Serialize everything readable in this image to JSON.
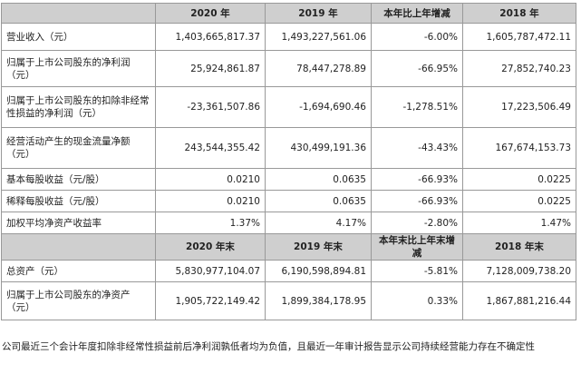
{
  "header1": [
    "",
    "2020 年",
    "2019 年",
    "本年比上年增减",
    "2018 年"
  ],
  "rows1": [
    {
      "label": "营业收入（元）",
      "v2020": "1,403,665,817.37",
      "v2019": "1,493,227,561.06",
      "change": "-6.00%",
      "v2018": "1,605,787,472.11"
    },
    {
      "label": "归属于上市公司股东的净利润（元）",
      "v2020": "25,924,861.87",
      "v2019": "78,447,278.89",
      "change": "-66.95%",
      "v2018": "27,852,740.23"
    },
    {
      "label": "归属于上市公司股东的扣除非经常性损益的净利润（元）",
      "v2020": "-23,361,507.86",
      "v2019": "-1,694,690.46",
      "change": "-1,278.51%",
      "v2018": "17,223,506.49"
    },
    {
      "label": "经营活动产生的现金流量净额（元）",
      "v2020": "243,544,355.42",
      "v2019": "430,499,191.36",
      "change": "-43.43%",
      "v2018": "167,674,153.73"
    },
    {
      "label": "基本每股收益（元/股）",
      "v2020": "0.0210",
      "v2019": "0.0635",
      "change": "-66.93%",
      "v2018": "0.0225"
    },
    {
      "label": "稀释每股收益（元/股）",
      "v2020": "0.0210",
      "v2019": "0.0635",
      "change": "-66.93%",
      "v2018": "0.0225"
    },
    {
      "label": "加权平均净资产收益率",
      "v2020": "1.37%",
      "v2019": "4.17%",
      "change": "-2.80%",
      "v2018": "1.47%"
    }
  ],
  "header2": [
    "",
    "2020 年末",
    "2019 年末",
    "本年末比上年末增减",
    "2018 年末"
  ],
  "rows2": [
    {
      "label": "总资产（元）",
      "v2020": "5,830,977,104.07",
      "v2019": "6,190,598,894.81",
      "change": "-5.81%",
      "v2018": "7,128,009,738.20"
    },
    {
      "label": "归属于上市公司股东的净资产（元）",
      "v2020": "1,905,722,149.42",
      "v2019": "1,899,384,178.95",
      "change": "0.33%",
      "v2018": "1,867,881,216.44"
    }
  ],
  "note": "公司最近三个会计年度扣除非经常性损益前后净利润孰低者均为负值，且最近一年审计报告显示公司持续经营能力存在不确定性"
}
